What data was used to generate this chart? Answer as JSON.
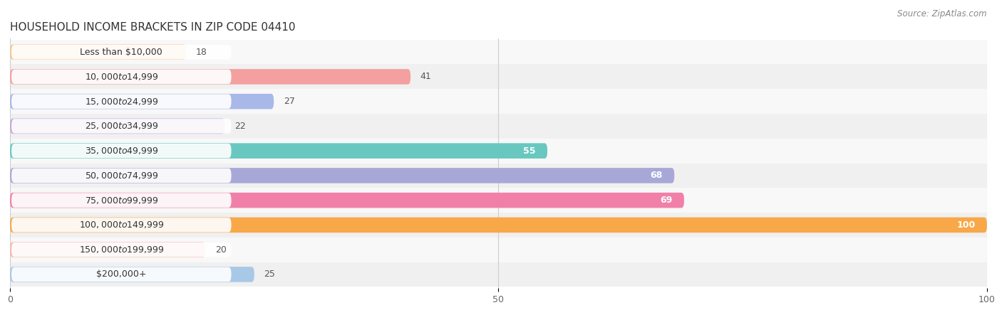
{
  "title": "HOUSEHOLD INCOME BRACKETS IN ZIP CODE 04410",
  "source": "Source: ZipAtlas.com",
  "categories": [
    "Less than $10,000",
    "$10,000 to $14,999",
    "$15,000 to $24,999",
    "$25,000 to $34,999",
    "$35,000 to $49,999",
    "$50,000 to $74,999",
    "$75,000 to $99,999",
    "$100,000 to $149,999",
    "$150,000 to $199,999",
    "$200,000+"
  ],
  "values": [
    18,
    41,
    27,
    22,
    55,
    68,
    69,
    100,
    20,
    25
  ],
  "colors": [
    "#F8C89A",
    "#F4A0A0",
    "#A8B8E8",
    "#C8A8D8",
    "#68C8C0",
    "#A8A8D8",
    "#F080A8",
    "#F8A848",
    "#F8B8B0",
    "#A8C8E8"
  ],
  "xlim": [
    0,
    100
  ],
  "bar_height": 0.62,
  "title_fontsize": 11,
  "label_fontsize": 9,
  "tick_fontsize": 9,
  "category_fontsize": 9,
  "source_fontsize": 8.5,
  "row_colors": [
    "#f0f0f0",
    "#f8f8f8"
  ]
}
